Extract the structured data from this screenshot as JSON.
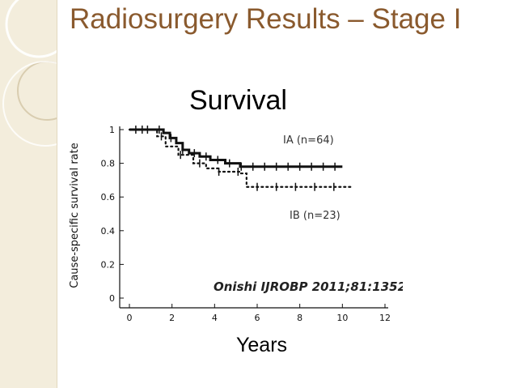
{
  "slide": {
    "title": "Radiosurgery Results – Stage I",
    "subtitle": "Survival",
    "xaxis_caption": "Years"
  },
  "colors": {
    "title": "#8a5a2e",
    "strip": "#f3eddc",
    "ink": "#111111"
  },
  "chart_data": {
    "type": "line",
    "ylabel": "Cause-specific survival rate",
    "xlabel": "Years",
    "xlim": [
      0,
      12
    ],
    "ylim": [
      0,
      1
    ],
    "x_ticks": [
      "0",
      "2",
      "4",
      "6",
      "8",
      "10",
      "12"
    ],
    "y_ticks": [
      "0",
      "0.2",
      "0.4",
      "0.6",
      "0.8",
      "1"
    ],
    "grid": false,
    "series": [
      {
        "name": "IA (n=64)",
        "style": "solid",
        "points": [
          [
            0,
            1.0
          ],
          [
            1.3,
            1.0
          ],
          [
            1.6,
            0.98
          ],
          [
            1.9,
            0.95
          ],
          [
            2.2,
            0.92
          ],
          [
            2.5,
            0.88
          ],
          [
            2.8,
            0.86
          ],
          [
            3.3,
            0.84
          ],
          [
            3.8,
            0.82
          ],
          [
            4.5,
            0.8
          ],
          [
            5.2,
            0.78
          ],
          [
            10.0,
            0.78
          ]
        ]
      },
      {
        "name": "IB (n=23)",
        "style": "dotted",
        "points": [
          [
            0,
            1.0
          ],
          [
            1.0,
            1.0
          ],
          [
            1.3,
            0.96
          ],
          [
            1.7,
            0.9
          ],
          [
            2.3,
            0.85
          ],
          [
            3.0,
            0.8
          ],
          [
            3.6,
            0.77
          ],
          [
            4.2,
            0.75
          ],
          [
            5.2,
            0.74
          ],
          [
            5.5,
            0.66
          ],
          [
            10.5,
            0.66
          ]
        ]
      }
    ],
    "annotation": "Onishi IJROBP 2011;81:1352"
  }
}
